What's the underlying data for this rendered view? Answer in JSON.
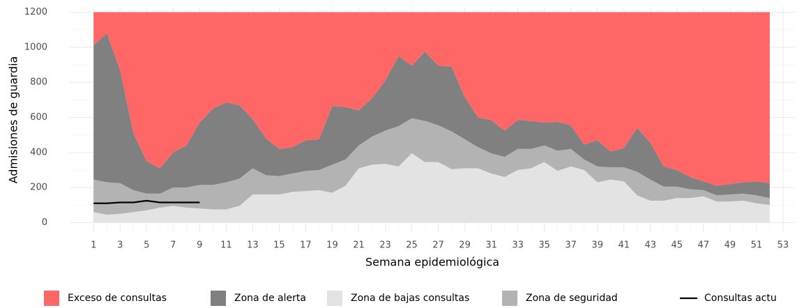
{
  "chart_data": {
    "type": "stacked_area",
    "x_label": "Semana epidemiológica",
    "y_label": "Admisiones de guardia",
    "x": [
      1,
      2,
      3,
      4,
      5,
      6,
      7,
      8,
      9,
      10,
      11,
      12,
      13,
      14,
      15,
      16,
      17,
      18,
      19,
      20,
      21,
      22,
      23,
      24,
      25,
      26,
      27,
      28,
      29,
      30,
      31,
      32,
      33,
      34,
      35,
      36,
      37,
      38,
      39,
      40,
      41,
      42,
      43,
      44,
      45,
      46,
      47,
      48,
      49,
      50,
      51,
      52
    ],
    "series": [
      {
        "name": "Exceso de consultas",
        "color": "#ff6666",
        "values": [
          190,
          120,
          330,
          690,
          850,
          890,
          800,
          760,
          630,
          550,
          515,
          530,
          610,
          720,
          780,
          770,
          730,
          725,
          535,
          540,
          560,
          490,
          390,
          250,
          305,
          225,
          305,
          310,
          485,
          600,
          615,
          675,
          615,
          620,
          630,
          625,
          645,
          755,
          730,
          795,
          775,
          660,
          745,
          880,
          900,
          940,
          965,
          990,
          980,
          970,
          965,
          975
        ]
      },
      {
        "name": "Zona de alerta",
        "color": "#808080",
        "values": [
          765,
          850,
          645,
          325,
          185,
          145,
          200,
          240,
          355,
          435,
          455,
          420,
          280,
          210,
          155,
          150,
          175,
          175,
          335,
          300,
          200,
          220,
          285,
          400,
          300,
          395,
          340,
          370,
          240,
          170,
          190,
          150,
          165,
          160,
          130,
          165,
          135,
          85,
          150,
          90,
          110,
          250,
          210,
          115,
          95,
          70,
          50,
          55,
          60,
          65,
          80,
          85
        ]
      },
      {
        "name": "Zona de bajas consultas",
        "color": "#e3e3e3",
        "values": [
          60,
          45,
          50,
          60,
          70,
          85,
          95,
          85,
          80,
          75,
          75,
          95,
          160,
          160,
          160,
          175,
          180,
          185,
          170,
          210,
          310,
          330,
          335,
          320,
          395,
          345,
          345,
          305,
          310,
          310,
          280,
          260,
          300,
          310,
          345,
          295,
          320,
          300,
          230,
          245,
          235,
          155,
          125,
          125,
          140,
          140,
          150,
          120,
          120,
          125,
          110,
          100
        ]
      },
      {
        "name": "Zona de seguridad",
        "color": "#b3b3b3",
        "values": [
          185,
          185,
          175,
          125,
          95,
          80,
          105,
          115,
          135,
          140,
          155,
          155,
          150,
          110,
          105,
          105,
          115,
          115,
          160,
          150,
          130,
          160,
          190,
          230,
          200,
          235,
          210,
          215,
          165,
          120,
          115,
          115,
          120,
          110,
          95,
          115,
          100,
          60,
          90,
          70,
          80,
          135,
          120,
          80,
          65,
          50,
          35,
          35,
          40,
          40,
          45,
          40
        ]
      },
      {
        "name": "Consultas actu",
        "color": "#000000",
        "type": "line",
        "values": [
          110,
          110,
          115,
          115,
          125,
          115,
          115,
          115,
          115,
          null,
          null,
          null,
          null,
          null,
          null,
          null,
          null,
          null,
          null,
          null,
          null,
          null,
          null,
          null,
          null,
          null,
          null,
          null,
          null,
          null,
          null,
          null,
          null,
          null,
          null,
          null,
          null,
          null,
          null,
          null,
          null,
          null,
          null,
          null,
          null,
          null,
          null,
          null,
          null,
          null,
          null,
          null
        ]
      }
    ],
    "stack_order": [
      2,
      3,
      1,
      0
    ],
    "xlim": [
      -0.8,
      53.9
    ],
    "ylim": [
      -50,
      1230
    ],
    "xticks": [
      1,
      3,
      5,
      7,
      9,
      11,
      13,
      15,
      17,
      19,
      21,
      23,
      25,
      27,
      29,
      31,
      33,
      35,
      37,
      39,
      41,
      43,
      45,
      47,
      49,
      51,
      53
    ],
    "yticks": [
      0,
      200,
      400,
      600,
      800,
      1000,
      1200
    ],
    "grid": true,
    "legend": "bottom"
  }
}
